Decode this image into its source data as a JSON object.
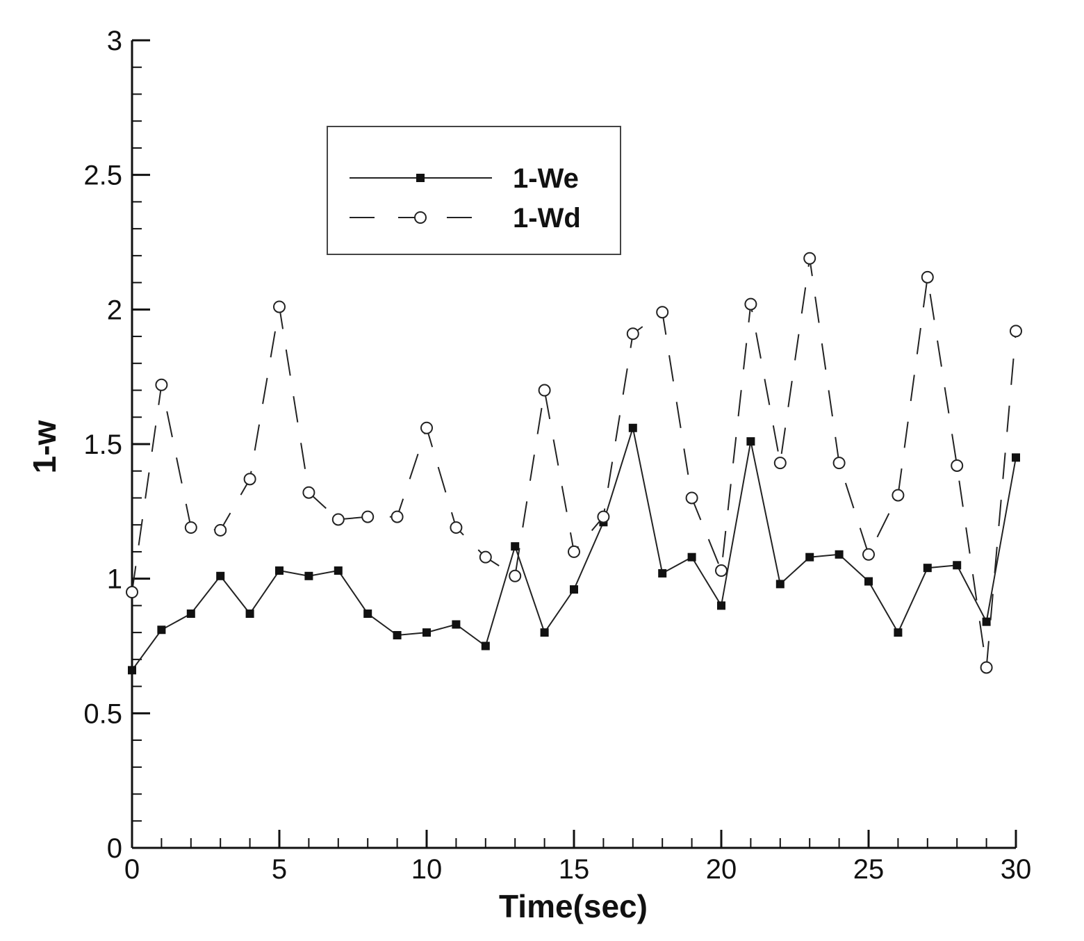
{
  "chart_data": {
    "type": "line",
    "title": "",
    "xlabel": "Time(sec)",
    "ylabel": "1-w",
    "xlim": [
      0,
      30
    ],
    "ylim": [
      0,
      3
    ],
    "x_major_ticks": [
      0,
      5,
      10,
      15,
      20,
      25,
      30
    ],
    "x_tick_labels": [
      "0",
      "5",
      "10",
      "15",
      "20",
      "25",
      "30"
    ],
    "y_major_ticks": [
      0,
      0.5,
      1,
      1.5,
      2,
      2.5,
      3
    ],
    "y_tick_labels": [
      "0",
      "0.5",
      "1",
      "1.5",
      "2",
      "2.5",
      "3"
    ],
    "grid": false,
    "legend_position": "top-center",
    "x": [
      0,
      1,
      2,
      3,
      4,
      5,
      6,
      7,
      8,
      9,
      10,
      11,
      12,
      13,
      14,
      15,
      16,
      17,
      18,
      19,
      20,
      21,
      22,
      23,
      24,
      25,
      26,
      27,
      28,
      29,
      30
    ],
    "series": [
      {
        "name": "1-We",
        "style": "solid",
        "marker": "filled-square",
        "values": [
          0.66,
          0.81,
          0.87,
          1.01,
          0.87,
          1.03,
          1.01,
          1.03,
          0.87,
          0.79,
          0.8,
          0.83,
          0.75,
          1.12,
          0.8,
          0.96,
          1.21,
          1.56,
          1.02,
          1.08,
          0.9,
          1.51,
          0.98,
          1.08,
          1.09,
          0.99,
          0.8,
          1.04,
          1.05,
          0.84,
          1.45
        ]
      },
      {
        "name": "1-Wd",
        "style": "dashed",
        "marker": "open-circle",
        "values": [
          0.95,
          1.72,
          1.19,
          1.18,
          1.37,
          2.01,
          1.32,
          1.22,
          1.23,
          1.23,
          1.56,
          1.19,
          1.08,
          1.01,
          1.7,
          1.1,
          1.23,
          1.91,
          1.99,
          1.3,
          1.03,
          2.02,
          1.43,
          2.19,
          1.43,
          1.09,
          1.31,
          2.12,
          1.42,
          0.67,
          1.92
        ]
      }
    ],
    "colors": {
      "axis": "#111111",
      "series_line": "#222222",
      "marker_fill": "#111111",
      "open_marker_fill": "#ffffff"
    }
  }
}
